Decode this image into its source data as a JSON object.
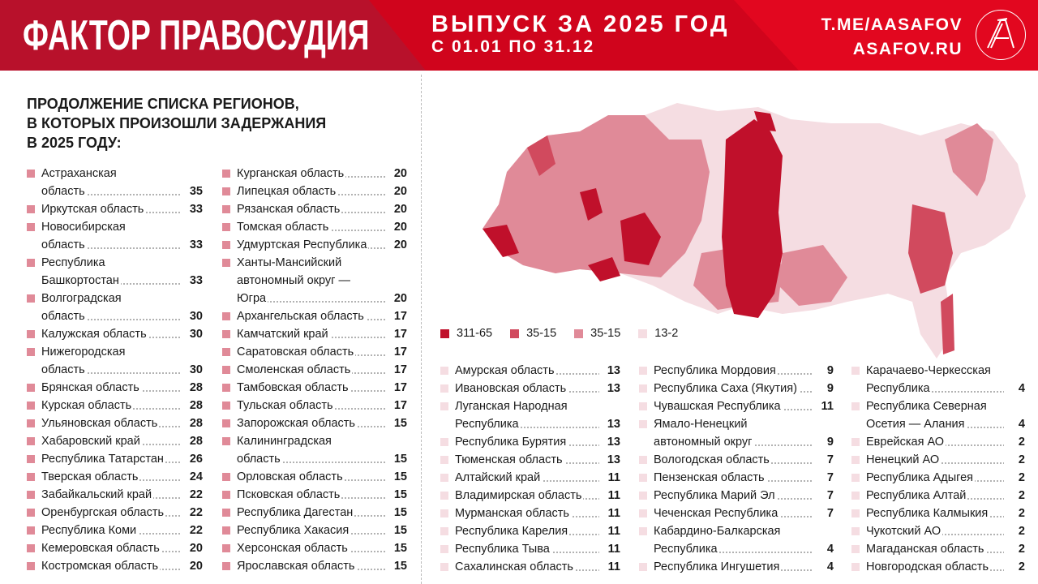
{
  "header": {
    "title": "ФАКТОР ПРАВОСУДИЯ",
    "issue": "ВЫПУСК ЗА 2025 ГОД",
    "dates": "С 01.01 ПО 31.12",
    "link1": "T.ME/AASAFOV",
    "link2": "ASAFOV.RU",
    "logo": "A"
  },
  "subtitle": "Продолжение списка регионов,\nв которых произошли задержания\nв 2025 году:",
  "colors": {
    "c1": "#c0102b",
    "c2": "#d14a5e",
    "c3": "#e08a98",
    "c4": "#f5dde2"
  },
  "legend": [
    {
      "label": "311-65"
    },
    {
      "label": "35-15"
    },
    {
      "label": "35-15"
    },
    {
      "label": "13-2"
    }
  ],
  "col1": [
    {
      "name": "Астраханская\nобласть",
      "value": "35"
    },
    {
      "name": "Иркутская область",
      "value": "33"
    },
    {
      "name": "Новосибирская\nобласть",
      "value": "33"
    },
    {
      "name": "Республика\nБашкортостан",
      "value": "33"
    },
    {
      "name": "Волгоградская\nобласть",
      "value": "30"
    },
    {
      "name": "Калужская область",
      "value": "30"
    },
    {
      "name": "Нижегородская\nобласть",
      "value": "30"
    },
    {
      "name": "Брянская область",
      "value": "28"
    },
    {
      "name": "Курская область",
      "value": "28"
    },
    {
      "name": "Ульяновская область",
      "value": "28"
    },
    {
      "name": "Хабаровский край",
      "value": "28"
    },
    {
      "name": "Республика Татарстан",
      "value": "26"
    },
    {
      "name": "Тверская область",
      "value": "24"
    },
    {
      "name": "Забайкальский край",
      "value": "22"
    },
    {
      "name": "Оренбургская область",
      "value": "22"
    },
    {
      "name": "Республика Коми",
      "value": "22"
    },
    {
      "name": "Кемеровская область",
      "value": "20"
    },
    {
      "name": "Костромская область",
      "value": "20"
    }
  ],
  "col2": [
    {
      "name": "Курганская область",
      "value": "20"
    },
    {
      "name": "Липецкая область",
      "value": "20"
    },
    {
      "name": "Рязанская область",
      "value": "20"
    },
    {
      "name": "Томская область",
      "value": "20"
    },
    {
      "name": "Удмуртская Республика",
      "value": "20"
    },
    {
      "name": "Ханты-Мансийский\nавтономный округ —\nЮгра",
      "value": "20"
    },
    {
      "name": "Архангельская область",
      "value": "17"
    },
    {
      "name": "Камчатский край",
      "value": "17"
    },
    {
      "name": "Саратовская область",
      "value": "17"
    },
    {
      "name": "Смоленская область",
      "value": "17"
    },
    {
      "name": "Тамбовская область",
      "value": "17"
    },
    {
      "name": "Тульская область",
      "value": "17"
    },
    {
      "name": "Запорожская область",
      "value": "15"
    },
    {
      "name": "Калининградская\nобласть",
      "value": "15"
    },
    {
      "name": "Орловская область",
      "value": "15"
    },
    {
      "name": "Псковская область",
      "value": "15"
    },
    {
      "name": "Республика Дагестан",
      "value": "15"
    },
    {
      "name": "Республика Хакасия",
      "value": "15"
    },
    {
      "name": "Херсонская область",
      "value": "15"
    },
    {
      "name": "Ярославская область",
      "value": "15"
    }
  ],
  "bottom1": [
    {
      "name": "Амурская область",
      "value": "13"
    },
    {
      "name": "Ивановская область",
      "value": "13"
    },
    {
      "name": "Луганская Народная\nРеспублика",
      "value": "13"
    },
    {
      "name": "Республика Бурятия",
      "value": "13"
    },
    {
      "name": "Тюменская область",
      "value": "13"
    },
    {
      "name": "Алтайский край",
      "value": "11"
    },
    {
      "name": "Владимирская область",
      "value": "11"
    },
    {
      "name": "Мурманская область",
      "value": "11"
    },
    {
      "name": "Республика Карелия",
      "value": "11"
    },
    {
      "name": "Республика Тыва",
      "value": "11"
    },
    {
      "name": "Сахалинская область",
      "value": "11"
    }
  ],
  "bottom2": [
    {
      "name": "Республика Мордовия",
      "value": "9"
    },
    {
      "name": "Республика Саха (Якутия)",
      "value": "9"
    },
    {
      "name": "Чувашская Республика",
      "value": "11"
    },
    {
      "name": "Ямало-Ненецкий\nавтономный округ",
      "value": "9"
    },
    {
      "name": "Вологодская область",
      "value": "7"
    },
    {
      "name": "Пензенская область",
      "value": "7"
    },
    {
      "name": "Республика Марий Эл",
      "value": "7"
    },
    {
      "name": "Чеченская Республика",
      "value": "7"
    },
    {
      "name": "Кабардино-Балкарская\nРеспублика",
      "value": "4"
    },
    {
      "name": "Республика Ингушетия",
      "value": "4"
    }
  ],
  "bottom3": [
    {
      "name": "Карачаево-Черкесская\nРеспублика",
      "value": "4"
    },
    {
      "name": "Республика Северная\nОсетия — Алания",
      "value": "4"
    },
    {
      "name": "Еврейская АО",
      "value": "2"
    },
    {
      "name": "Ненецкий АО",
      "value": "2"
    },
    {
      "name": "Республика Адыгея",
      "value": "2"
    },
    {
      "name": "Республика Алтай",
      "value": "2"
    },
    {
      "name": "Республика Калмыкия",
      "value": "2"
    },
    {
      "name": "Чукотский АО",
      "value": "2"
    },
    {
      "name": "Магаданская область",
      "value": "2"
    },
    {
      "name": "Новгородская область",
      "value": "2"
    }
  ]
}
